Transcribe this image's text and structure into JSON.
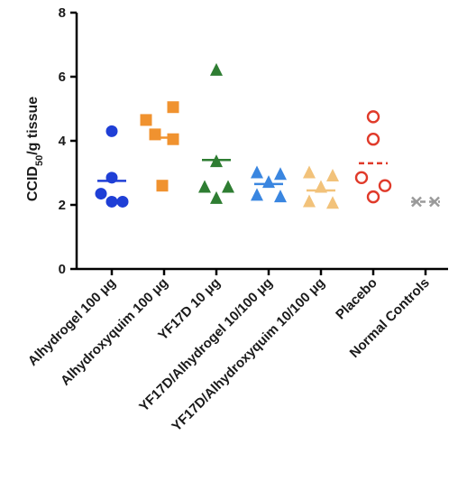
{
  "chart_data": {
    "type": "scatter",
    "ylabel_main": "CCID",
    "ylabel_sub": "50",
    "ylabel_rest": "/g tissue",
    "ylim": [
      0,
      8
    ],
    "yticks": [
      0,
      2,
      4,
      6,
      8
    ],
    "grid": false,
    "categories": [
      "Alhydrogel 100 μg",
      "Alhydroxyquim 100 μg",
      "YF17D 10 μg",
      "YF17D/Alhydrogel 10/100 μg",
      "YF17D/Alhydroxyquim 10/100 μg",
      "Placebo",
      "Normal Controls"
    ],
    "series": [
      {
        "category": "Alhydrogel 100 μg",
        "marker": "circle-filled",
        "color": "#1f3fd6",
        "mean_line": "solid",
        "mean": 2.75,
        "values": [
          4.3,
          2.85,
          2.35,
          2.1,
          2.1
        ]
      },
      {
        "category": "Alhydroxyquim 100 μg",
        "marker": "square-filled",
        "color": "#f0922f",
        "mean_line": "solid",
        "mean": 4.1,
        "values": [
          4.65,
          5.05,
          4.2,
          4.05,
          2.6
        ]
      },
      {
        "category": "YF17D 10 μg",
        "marker": "triangle-filled",
        "color": "#2e7d32",
        "mean_line": "solid",
        "mean": 3.4,
        "values": [
          6.2,
          3.35,
          2.55,
          2.55,
          2.2
        ]
      },
      {
        "category": "YF17D/Alhydrogel 10/100 μg",
        "marker": "triangle-filled",
        "color": "#3a86e0",
        "mean_line": "solid",
        "mean": 2.65,
        "values": [
          3.0,
          2.95,
          2.7,
          2.3,
          2.25
        ]
      },
      {
        "category": "YF17D/Alhydroxyquim 10/100 μg",
        "marker": "triangle-filled",
        "color": "#f2c27a",
        "mean_line": "solid",
        "mean": 2.45,
        "values": [
          3.0,
          2.9,
          2.55,
          2.1,
          2.05
        ]
      },
      {
        "category": "Placebo",
        "marker": "circle-open",
        "color": "#e03a2a",
        "mean_line": "dashed",
        "mean": 3.3,
        "values": [
          4.75,
          4.05,
          2.85,
          2.6,
          2.25
        ]
      },
      {
        "category": "Normal Controls",
        "marker": "x",
        "color": "#9a9a9a",
        "mean_line": "dashed",
        "mean": 2.1,
        "values": [
          2.1,
          2.1
        ]
      }
    ]
  }
}
